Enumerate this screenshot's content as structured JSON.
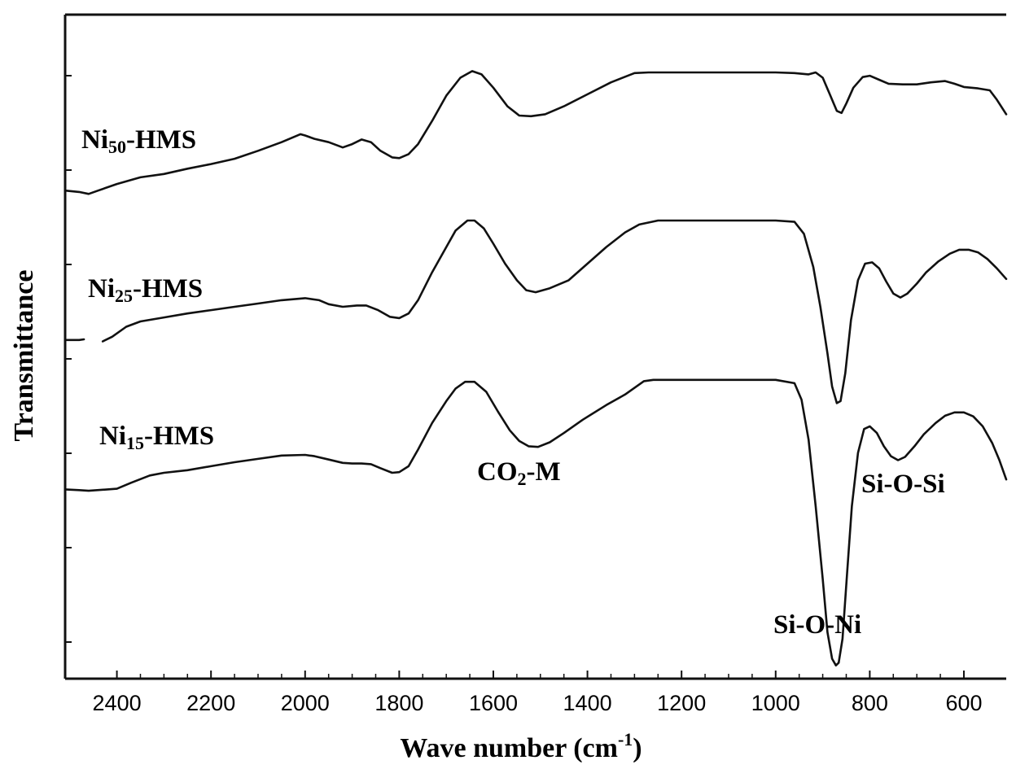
{
  "chart_data": {
    "type": "line",
    "xlabel": "Wave number (cm",
    "xlabel_sup": "-1",
    "xlabel_end": ")",
    "ylabel": "Transmittance",
    "xlim": [
      2510,
      510
    ],
    "x_reversed": true,
    "xticks": [
      2400,
      2200,
      2000,
      1800,
      1600,
      1400,
      1200,
      1000,
      800,
      600
    ],
    "ylim": [
      0,
      1
    ],
    "y_tick_labels_shown": false,
    "grid": false,
    "series": [
      {
        "name": "Ni50-HMS",
        "label_main": "Ni",
        "label_sub": "50",
        "label_tail": "-HMS",
        "points": [
          [
            2510,
            0.735
          ],
          [
            2480,
            0.733
          ],
          [
            2460,
            0.73
          ],
          [
            2440,
            0.735
          ],
          [
            2400,
            0.745
          ],
          [
            2350,
            0.755
          ],
          [
            2300,
            0.76
          ],
          [
            2250,
            0.768
          ],
          [
            2200,
            0.775
          ],
          [
            2150,
            0.783
          ],
          [
            2100,
            0.795
          ],
          [
            2050,
            0.808
          ],
          [
            2010,
            0.82
          ],
          [
            2000,
            0.818
          ],
          [
            1980,
            0.813
          ],
          [
            1950,
            0.808
          ],
          [
            1920,
            0.8
          ],
          [
            1900,
            0.805
          ],
          [
            1880,
            0.812
          ],
          [
            1860,
            0.808
          ],
          [
            1840,
            0.795
          ],
          [
            1815,
            0.785
          ],
          [
            1800,
            0.784
          ],
          [
            1780,
            0.79
          ],
          [
            1760,
            0.805
          ],
          [
            1730,
            0.84
          ],
          [
            1700,
            0.878
          ],
          [
            1670,
            0.905
          ],
          [
            1645,
            0.915
          ],
          [
            1625,
            0.91
          ],
          [
            1600,
            0.89
          ],
          [
            1570,
            0.862
          ],
          [
            1545,
            0.848
          ],
          [
            1520,
            0.847
          ],
          [
            1490,
            0.85
          ],
          [
            1450,
            0.862
          ],
          [
            1400,
            0.88
          ],
          [
            1350,
            0.898
          ],
          [
            1300,
            0.912
          ],
          [
            1270,
            0.913
          ],
          [
            1200,
            0.913
          ],
          [
            1100,
            0.913
          ],
          [
            1000,
            0.913
          ],
          [
            960,
            0.912
          ],
          [
            930,
            0.91
          ],
          [
            915,
            0.913
          ],
          [
            900,
            0.905
          ],
          [
            885,
            0.88
          ],
          [
            870,
            0.855
          ],
          [
            860,
            0.852
          ],
          [
            850,
            0.866
          ],
          [
            835,
            0.89
          ],
          [
            815,
            0.906
          ],
          [
            800,
            0.908
          ],
          [
            780,
            0.902
          ],
          [
            760,
            0.896
          ],
          [
            730,
            0.895
          ],
          [
            700,
            0.895
          ],
          [
            670,
            0.898
          ],
          [
            640,
            0.9
          ],
          [
            620,
            0.896
          ],
          [
            600,
            0.891
          ],
          [
            570,
            0.889
          ],
          [
            545,
            0.886
          ],
          [
            530,
            0.872
          ],
          [
            510,
            0.85
          ]
        ]
      },
      {
        "name": "Ni25-HMS",
        "label_main": "Ni",
        "label_sub": "25",
        "label_tail": "-HMS",
        "points": [
          [
            2510,
            0.51
          ],
          [
            2480,
            0.51
          ],
          [
            2470,
            0.511
          ],
          [
            2450,
            null
          ],
          [
            2430,
            0.508
          ],
          [
            2410,
            0.515
          ],
          [
            2380,
            0.53
          ],
          [
            2350,
            0.538
          ],
          [
            2300,
            0.544
          ],
          [
            2250,
            0.55
          ],
          [
            2200,
            0.555
          ],
          [
            2150,
            0.56
          ],
          [
            2100,
            0.565
          ],
          [
            2050,
            0.57
          ],
          [
            2000,
            0.573
          ],
          [
            1970,
            0.57
          ],
          [
            1950,
            0.564
          ],
          [
            1920,
            0.56
          ],
          [
            1890,
            0.562
          ],
          [
            1870,
            0.562
          ],
          [
            1845,
            0.555
          ],
          [
            1820,
            0.545
          ],
          [
            1800,
            0.543
          ],
          [
            1780,
            0.55
          ],
          [
            1760,
            0.57
          ],
          [
            1730,
            0.612
          ],
          [
            1700,
            0.65
          ],
          [
            1680,
            0.675
          ],
          [
            1655,
            0.69
          ],
          [
            1640,
            0.69
          ],
          [
            1620,
            0.678
          ],
          [
            1600,
            0.655
          ],
          [
            1575,
            0.625
          ],
          [
            1550,
            0.6
          ],
          [
            1530,
            0.585
          ],
          [
            1510,
            0.582
          ],
          [
            1480,
            0.588
          ],
          [
            1440,
            0.6
          ],
          [
            1400,
            0.625
          ],
          [
            1360,
            0.65
          ],
          [
            1320,
            0.672
          ],
          [
            1290,
            0.684
          ],
          [
            1250,
            0.69
          ],
          [
            1200,
            0.69
          ],
          [
            1100,
            0.69
          ],
          [
            1000,
            0.69
          ],
          [
            960,
            0.688
          ],
          [
            940,
            0.67
          ],
          [
            920,
            0.62
          ],
          [
            905,
            0.56
          ],
          [
            890,
            0.49
          ],
          [
            880,
            0.44
          ],
          [
            870,
            0.415
          ],
          [
            862,
            0.418
          ],
          [
            852,
            0.46
          ],
          [
            840,
            0.54
          ],
          [
            825,
            0.6
          ],
          [
            810,
            0.625
          ],
          [
            795,
            0.627
          ],
          [
            780,
            0.618
          ],
          [
            765,
            0.598
          ],
          [
            750,
            0.58
          ],
          [
            735,
            0.574
          ],
          [
            720,
            0.58
          ],
          [
            700,
            0.595
          ],
          [
            680,
            0.612
          ],
          [
            655,
            0.628
          ],
          [
            630,
            0.64
          ],
          [
            610,
            0.646
          ],
          [
            590,
            0.646
          ],
          [
            570,
            0.642
          ],
          [
            550,
            0.632
          ],
          [
            530,
            0.618
          ],
          [
            510,
            0.602
          ]
        ]
      },
      {
        "name": "Ni15-HMS",
        "label_main": "Ni",
        "label_sub": "15",
        "label_tail": "-HMS",
        "points": [
          [
            2510,
            0.285
          ],
          [
            2480,
            0.284
          ],
          [
            2460,
            0.283
          ],
          [
            2420,
            0.285
          ],
          [
            2400,
            0.286
          ],
          [
            2370,
            0.295
          ],
          [
            2330,
            0.306
          ],
          [
            2300,
            0.31
          ],
          [
            2250,
            0.314
          ],
          [
            2200,
            0.32
          ],
          [
            2150,
            0.326
          ],
          [
            2100,
            0.331
          ],
          [
            2050,
            0.336
          ],
          [
            2000,
            0.337
          ],
          [
            1980,
            0.335
          ],
          [
            1950,
            0.33
          ],
          [
            1920,
            0.325
          ],
          [
            1900,
            0.324
          ],
          [
            1880,
            0.324
          ],
          [
            1860,
            0.323
          ],
          [
            1840,
            0.317
          ],
          [
            1815,
            0.31
          ],
          [
            1800,
            0.311
          ],
          [
            1780,
            0.32
          ],
          [
            1760,
            0.345
          ],
          [
            1730,
            0.385
          ],
          [
            1700,
            0.418
          ],
          [
            1680,
            0.437
          ],
          [
            1660,
            0.447
          ],
          [
            1640,
            0.447
          ],
          [
            1615,
            0.432
          ],
          [
            1590,
            0.402
          ],
          [
            1565,
            0.374
          ],
          [
            1545,
            0.358
          ],
          [
            1525,
            0.35
          ],
          [
            1505,
            0.349
          ],
          [
            1480,
            0.356
          ],
          [
            1450,
            0.37
          ],
          [
            1410,
            0.39
          ],
          [
            1360,
            0.412
          ],
          [
            1320,
            0.428
          ],
          [
            1280,
            0.448
          ],
          [
            1260,
            0.45
          ],
          [
            1200,
            0.45
          ],
          [
            1100,
            0.45
          ],
          [
            1000,
            0.45
          ],
          [
            960,
            0.445
          ],
          [
            945,
            0.42
          ],
          [
            930,
            0.36
          ],
          [
            915,
            0.26
          ],
          [
            900,
            0.15
          ],
          [
            890,
            0.07
          ],
          [
            880,
            0.03
          ],
          [
            872,
            0.02
          ],
          [
            866,
            0.024
          ],
          [
            858,
            0.06
          ],
          [
            848,
            0.16
          ],
          [
            838,
            0.26
          ],
          [
            825,
            0.34
          ],
          [
            812,
            0.376
          ],
          [
            800,
            0.38
          ],
          [
            785,
            0.37
          ],
          [
            770,
            0.35
          ],
          [
            755,
            0.335
          ],
          [
            740,
            0.329
          ],
          [
            725,
            0.334
          ],
          [
            705,
            0.35
          ],
          [
            685,
            0.368
          ],
          [
            660,
            0.385
          ],
          [
            640,
            0.396
          ],
          [
            620,
            0.401
          ],
          [
            600,
            0.401
          ],
          [
            580,
            0.395
          ],
          [
            560,
            0.38
          ],
          [
            540,
            0.355
          ],
          [
            525,
            0.33
          ],
          [
            510,
            0.3
          ]
        ]
      }
    ],
    "annotations": [
      {
        "text_main": "CO",
        "text_sub": "2",
        "text_tail": "-M"
      },
      {
        "text_main": "Si-O-Si",
        "text_sub": "",
        "text_tail": ""
      },
      {
        "text_main": "Si-O-Ni",
        "text_sub": "",
        "text_tail": ""
      }
    ]
  }
}
